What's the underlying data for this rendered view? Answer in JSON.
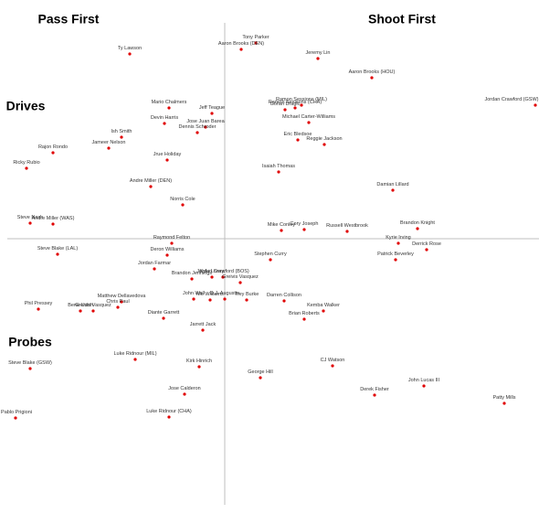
{
  "chart_data": {
    "type": "scatter",
    "annotations": [
      "Pass First",
      "Shoot First",
      "Drives",
      "Probes"
    ],
    "color": "#e00000",
    "xlim": [
      -24.6,
      34.4
    ],
    "ylim": [
      -30.1,
      26.1
    ],
    "labels": [
      "Ty Lawson",
      "Tony Parker",
      "Aaron Brooks (DEN)",
      "Jeremy Lin",
      "Aaron Brooks (HOU)",
      "Jordan Crawford (GSW)",
      "Ramon Sessions (CHA)",
      "Ramon Sessions (MIL)",
      "Goran Dragic",
      "Michael Carter-Williams",
      "Mario Chalmers",
      "Jeff Teague",
      "Devin Harris",
      "Jose Juan Barea",
      "Ish Smith",
      "Dennis Schroder",
      "Jameer Nelson",
      "Rajon Rondo",
      "Eric Bledsoe",
      "Reggie Jackson",
      "Jrue Holiday",
      "Ricky Rubio",
      "Isaiah Thomas",
      "Andre Miller (DEN)",
      "Damian Lillard",
      "Norris Cole",
      "Steve Nash",
      "Andre Miller (WAS)",
      "Mike Conley",
      "Cory Joseph",
      "Russell Westbrook",
      "Brandon Knight",
      "Kyrie Irving",
      "Derrick Rose",
      "Raymond Felton",
      "Deron Williams",
      "Steve Blake (LAL)",
      "Jordan Crawford (BOS)",
      "Stephen Curry",
      "Patrick Beverley",
      "Jordan Farmar",
      "Kyle Lowry",
      "Greivis Vasquez",
      "Brandon Jennings",
      "John Wall",
      "D.J. Augustin",
      "Darren Collison",
      "Matthew Dellavedova",
      "Greivis Vasquez",
      "Phil Pressey",
      "Mo Williams",
      "Trey Burke",
      "Kemba Walker",
      "Diante Garrett",
      "Chris Paul",
      "Beno Udrih",
      "Brian Roberts",
      "Jarrett Jack",
      "Luke Ridnour (MIL)",
      "Kirk Hinrich",
      "Steve Blake (GSW)",
      "CJ Watson",
      "George Hill",
      "John Lucas III",
      "Jose Calderon",
      "Derek Fisher",
      "Patty Mills",
      "Pablo Prigioni",
      "Luke Ridnour (CHA)"
    ],
    "x": [
      -10.4,
      3.4,
      1.8,
      10.2,
      16.1,
      34.0,
      7.7,
      8.4,
      6.6,
      9.2,
      -6.1,
      -1.4,
      -6.6,
      -2.1,
      -11.3,
      -3.0,
      -12.7,
      -18.8,
      8.0,
      10.9,
      -6.3,
      -21.7,
      5.9,
      -8.1,
      18.4,
      -4.6,
      -21.3,
      -18.8,
      6.2,
      8.7,
      13.4,
      21.1,
      19.0,
      22.1,
      -5.8,
      -6.3,
      -18.3,
      -0.2,
      5.0,
      18.7,
      -7.7,
      -1.4,
      1.7,
      -3.6,
      -3.4,
      0.0,
      6.5,
      -11.3,
      -14.4,
      -20.4,
      -1.6,
      2.4,
      10.8,
      -6.7,
      -11.7,
      -15.8,
      8.7,
      -2.4,
      -9.8,
      -2.8,
      -21.3,
      11.8,
      3.9,
      21.8,
      -4.4,
      16.4,
      30.6,
      -22.9,
      -6.1
    ],
    "y": [
      20.2,
      21.4,
      20.7,
      19.7,
      17.6,
      14.6,
      14.3,
      14.6,
      14.1,
      12.7,
      14.3,
      13.7,
      12.6,
      12.2,
      11.1,
      11.6,
      9.9,
      9.4,
      10.8,
      10.3,
      8.6,
      7.7,
      7.3,
      5.7,
      5.3,
      3.7,
      1.7,
      1.6,
      0.9,
      1.0,
      0.8,
      1.1,
      -0.5,
      -1.2,
      -0.5,
      -1.8,
      -1.7,
      -4.2,
      -2.3,
      -2.3,
      -3.3,
      -4.2,
      -4.8,
      -4.4,
      -6.6,
      -6.6,
      -6.8,
      -6.9,
      -7.9,
      -7.7,
      -6.7,
      -6.7,
      -7.9,
      -8.7,
      -7.5,
      -7.9,
      -8.8,
      -10.0,
      -13.2,
      -14.0,
      -14.2,
      -13.9,
      -15.2,
      -16.1,
      -17.0,
      -17.1,
      -18.0,
      -19.6,
      -19.5
    ]
  }
}
